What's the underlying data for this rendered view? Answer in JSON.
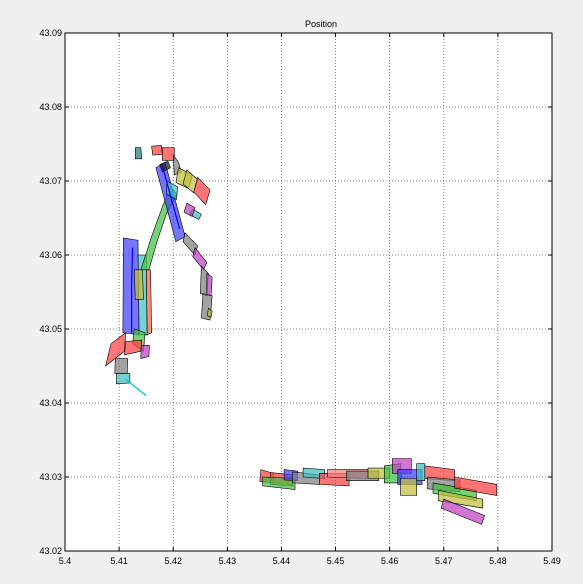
{
  "chart_data": {
    "type": "area",
    "title": "Position",
    "xlabel": "",
    "ylabel": "",
    "xlim": [
      5.4,
      5.49
    ],
    "ylim": [
      43.02,
      43.09
    ],
    "x_ticks": [
      5.4,
      5.41,
      5.42,
      5.43,
      5.44,
      5.45,
      5.46,
      5.47,
      5.48,
      5.49
    ],
    "x_tick_labels": [
      "5.4",
      "5.41",
      "5.42",
      "5.43",
      "5.44",
      "5.45",
      "5.46",
      "5.47",
      "5.48",
      "5.49"
    ],
    "y_ticks": [
      43.02,
      43.03,
      43.04,
      43.05,
      43.06,
      43.07,
      43.08,
      43.09
    ],
    "y_tick_labels": [
      "43.02",
      "43.03",
      "43.04",
      "43.05",
      "43.06",
      "43.07",
      "43.08",
      "43.09"
    ],
    "grid": true,
    "legend": "none",
    "patches": [
      {
        "color": "#4040ff",
        "points": [
          [
            5.4107,
            43.0495
          ],
          [
            5.4137,
            43.0492
          ],
          [
            5.4135,
            43.062
          ],
          [
            5.4108,
            43.0623
          ]
        ]
      },
      {
        "color": "#40c0c0",
        "points": [
          [
            5.4137,
            43.0492
          ],
          [
            5.4152,
            43.0492
          ],
          [
            5.415,
            43.06
          ],
          [
            5.4135,
            43.06
          ]
        ]
      },
      {
        "color": "#ff6040",
        "points": [
          [
            5.4152,
            43.0492
          ],
          [
            5.416,
            43.0495
          ],
          [
            5.4158,
            43.058
          ],
          [
            5.415,
            43.058
          ]
        ]
      },
      {
        "color": "#c0c040",
        "points": [
          [
            5.413,
            43.054
          ],
          [
            5.4145,
            43.054
          ],
          [
            5.4143,
            43.058
          ],
          [
            5.4128,
            43.058
          ]
        ]
      },
      {
        "color": "#40c040",
        "points": [
          [
            5.4125,
            43.048
          ],
          [
            5.4145,
            43.047
          ],
          [
            5.4148,
            43.0495
          ],
          [
            5.4128,
            43.05
          ]
        ]
      },
      {
        "color": "#ff4040",
        "points": [
          [
            5.4075,
            43.045
          ],
          [
            5.411,
            43.047
          ],
          [
            5.4112,
            43.0495
          ],
          [
            5.4085,
            43.048
          ]
        ]
      },
      {
        "color": "#ff4040",
        "points": [
          [
            5.411,
            43.0465
          ],
          [
            5.414,
            43.047
          ],
          [
            5.4142,
            43.0485
          ],
          [
            5.4112,
            43.0483
          ]
        ]
      },
      {
        "color": "#c040c0",
        "points": [
          [
            5.414,
            43.046
          ],
          [
            5.4155,
            43.0463
          ],
          [
            5.4156,
            43.0478
          ],
          [
            5.4141,
            43.0478
          ]
        ]
      },
      {
        "color": "#808080",
        "points": [
          [
            5.4092,
            43.044
          ],
          [
            5.4115,
            43.044
          ],
          [
            5.4116,
            43.046
          ],
          [
            5.4093,
            43.046
          ]
        ]
      },
      {
        "color": "#40c0c0",
        "points": [
          [
            5.4095,
            43.0426
          ],
          [
            5.412,
            43.0427
          ],
          [
            5.412,
            43.044
          ],
          [
            5.4095,
            43.044
          ]
        ]
      },
      {
        "color": "#40c040",
        "points": [
          [
            5.414,
            43.058
          ],
          [
            5.416,
            43.0625
          ],
          [
            5.418,
            43.0665
          ],
          [
            5.4195,
            43.0692
          ],
          [
            5.4207,
            43.0682
          ],
          [
            5.4187,
            43.0655
          ],
          [
            5.417,
            43.0618
          ],
          [
            5.4155,
            43.058
          ]
        ]
      },
      {
        "color": "#4040ff",
        "points": [
          [
            5.4168,
            43.0718
          ],
          [
            5.4185,
            43.0725
          ],
          [
            5.4222,
            43.0625
          ],
          [
            5.4205,
            43.0618
          ]
        ]
      },
      {
        "color": "#202020",
        "points": [
          [
            5.4175,
            43.0722
          ],
          [
            5.419,
            43.0727
          ],
          [
            5.4195,
            43.0718
          ],
          [
            5.418,
            43.0712
          ]
        ]
      },
      {
        "color": "#40c0c0",
        "points": [
          [
            5.4188,
            43.07
          ],
          [
            5.4208,
            43.0692
          ],
          [
            5.4206,
            43.0675
          ],
          [
            5.4188,
            43.0682
          ]
        ]
      },
      {
        "color": "#ff4040",
        "points": [
          [
            5.418,
            43.0745
          ],
          [
            5.4202,
            43.0745
          ],
          [
            5.4202,
            43.0728
          ],
          [
            5.418,
            43.0728
          ]
        ]
      },
      {
        "color": "#808080",
        "points": [
          [
            5.42,
            43.0735
          ],
          [
            5.421,
            43.0725
          ],
          [
            5.4215,
            43.0712
          ],
          [
            5.4202,
            43.0708
          ]
        ]
      },
      {
        "color": "#c0c040",
        "points": [
          [
            5.421,
            43.0718
          ],
          [
            5.4235,
            43.0708
          ],
          [
            5.4228,
            43.069
          ],
          [
            5.4205,
            43.0698
          ]
        ]
      },
      {
        "color": "#c0c040",
        "points": [
          [
            5.4225,
            43.0715
          ],
          [
            5.4245,
            43.0702
          ],
          [
            5.4238,
            43.0684
          ],
          [
            5.4218,
            43.0696
          ]
        ]
      },
      {
        "color": "#ff4040",
        "points": [
          [
            5.4245,
            43.0705
          ],
          [
            5.4268,
            43.0688
          ],
          [
            5.426,
            43.0668
          ],
          [
            5.4238,
            43.0685
          ]
        ]
      },
      {
        "color": "#40c0c0",
        "points": [
          [
            5.4236,
            43.0662
          ],
          [
            5.4252,
            43.0655
          ],
          [
            5.4247,
            43.0648
          ],
          [
            5.423,
            43.0655
          ]
        ]
      },
      {
        "color": "#c040c0",
        "points": [
          [
            5.4225,
            43.067
          ],
          [
            5.424,
            43.0664
          ],
          [
            5.4235,
            43.0652
          ],
          [
            5.422,
            43.0658
          ]
        ]
      },
      {
        "color": "#808080",
        "points": [
          [
            5.4222,
            43.063
          ],
          [
            5.4245,
            43.0612
          ],
          [
            5.424,
            43.06
          ],
          [
            5.4218,
            43.0618
          ]
        ]
      },
      {
        "color": "#c040c0",
        "points": [
          [
            5.424,
            43.061
          ],
          [
            5.4262,
            43.059
          ],
          [
            5.4256,
            43.058
          ],
          [
            5.4236,
            43.0598
          ]
        ]
      },
      {
        "color": "#808080",
        "points": [
          [
            5.4252,
            43.0585
          ],
          [
            5.4265,
            43.0575
          ],
          [
            5.4262,
            43.0545
          ],
          [
            5.425,
            43.0548
          ]
        ]
      },
      {
        "color": "#c040c0",
        "points": [
          [
            5.4262,
            43.0575
          ],
          [
            5.4272,
            43.057
          ],
          [
            5.427,
            43.0545
          ],
          [
            5.4262,
            43.0545
          ]
        ]
      },
      {
        "color": "#808080",
        "points": [
          [
            5.4255,
            43.0548
          ],
          [
            5.4272,
            43.0545
          ],
          [
            5.4268,
            43.0512
          ],
          [
            5.4252,
            43.0515
          ]
        ]
      },
      {
        "color": "#c0c040",
        "points": [
          [
            5.4265,
            43.0528
          ],
          [
            5.4272,
            43.0524
          ],
          [
            5.427,
            43.0516
          ],
          [
            5.4263,
            43.0518
          ]
        ]
      },
      {
        "color": "#ff4040",
        "points": [
          [
            5.416,
            43.0747
          ],
          [
            5.4178,
            43.0748
          ],
          [
            5.418,
            43.0736
          ],
          [
            5.4162,
            43.0735
          ]
        ]
      },
      {
        "color": "#208080",
        "points": [
          [
            5.413,
            43.0745
          ],
          [
            5.414,
            43.0745
          ],
          [
            5.4142,
            43.073
          ],
          [
            5.413,
            43.073
          ]
        ]
      },
      {
        "color": "#ff4040",
        "points": [
          [
            5.4362,
            43.031
          ],
          [
            5.4385,
            43.0305
          ],
          [
            5.4385,
            43.0292
          ],
          [
            5.436,
            43.0294
          ]
        ]
      },
      {
        "color": "#ff4040",
        "points": [
          [
            5.438,
            43.0306
          ],
          [
            5.442,
            43.0303
          ],
          [
            5.4421,
            43.0288
          ],
          [
            5.438,
            43.029
          ]
        ]
      },
      {
        "color": "#40c040",
        "points": [
          [
            5.4365,
            43.03
          ],
          [
            5.4425,
            43.0298
          ],
          [
            5.4425,
            43.0283
          ],
          [
            5.4365,
            43.0288
          ]
        ]
      },
      {
        "color": "#4040ff",
        "points": [
          [
            5.4405,
            43.031
          ],
          [
            5.443,
            43.0308
          ],
          [
            5.443,
            43.0295
          ],
          [
            5.4405,
            43.0296
          ]
        ]
      },
      {
        "color": "#808080",
        "points": [
          [
            5.442,
            43.0307
          ],
          [
            5.447,
            43.0303
          ],
          [
            5.447,
            43.029
          ],
          [
            5.442,
            43.0292
          ]
        ]
      },
      {
        "color": "#40c0c0",
        "points": [
          [
            5.444,
            43.0312
          ],
          [
            5.448,
            43.031
          ],
          [
            5.448,
            43.0298
          ],
          [
            5.444,
            43.03
          ]
        ]
      },
      {
        "color": "#ff4040",
        "points": [
          [
            5.447,
            43.0305
          ],
          [
            5.4525,
            43.0305
          ],
          [
            5.4525,
            43.0288
          ],
          [
            5.447,
            43.029
          ]
        ]
      },
      {
        "color": "#ff8080",
        "points": [
          [
            5.4485,
            43.031
          ],
          [
            5.456,
            43.031
          ],
          [
            5.456,
            43.0298
          ],
          [
            5.4485,
            43.03
          ]
        ]
      },
      {
        "color": "#808080",
        "points": [
          [
            5.452,
            43.0308
          ],
          [
            5.458,
            43.0308
          ],
          [
            5.458,
            43.0295
          ],
          [
            5.452,
            43.0295
          ]
        ]
      },
      {
        "color": "#c0c040",
        "points": [
          [
            5.456,
            43.0312
          ],
          [
            5.46,
            43.0312
          ],
          [
            5.46,
            43.0298
          ],
          [
            5.456,
            43.0298
          ]
        ]
      },
      {
        "color": "#40c040",
        "points": [
          [
            5.459,
            43.0315
          ],
          [
            5.462,
            43.0318
          ],
          [
            5.4622,
            43.0292
          ],
          [
            5.459,
            43.0292
          ]
        ]
      },
      {
        "color": "#c040c0",
        "points": [
          [
            5.4605,
            43.0325
          ],
          [
            5.464,
            43.0325
          ],
          [
            5.464,
            43.0305
          ],
          [
            5.4605,
            43.0305
          ]
        ]
      },
      {
        "color": "#4040ff",
        "points": [
          [
            5.4615,
            43.031
          ],
          [
            5.466,
            43.031
          ],
          [
            5.466,
            43.029
          ],
          [
            5.4615,
            43.029
          ]
        ]
      },
      {
        "color": "#c0c040",
        "points": [
          [
            5.462,
            43.0298
          ],
          [
            5.465,
            43.0298
          ],
          [
            5.465,
            43.0275
          ],
          [
            5.462,
            43.0275
          ]
        ]
      },
      {
        "color": "#40c0c0",
        "points": [
          [
            5.465,
            43.0318
          ],
          [
            5.4665,
            43.0318
          ],
          [
            5.4665,
            43.0295
          ],
          [
            5.465,
            43.0295
          ]
        ]
      },
      {
        "color": "#ff4040",
        "points": [
          [
            5.4665,
            43.0315
          ],
          [
            5.472,
            43.031
          ],
          [
            5.472,
            43.0295
          ],
          [
            5.4665,
            43.0298
          ]
        ]
      },
      {
        "color": "#808080",
        "points": [
          [
            5.467,
            43.03
          ],
          [
            5.473,
            43.0296
          ],
          [
            5.473,
            43.028
          ],
          [
            5.467,
            43.0284
          ]
        ]
      },
      {
        "color": "#40c040",
        "points": [
          [
            5.468,
            43.0292
          ],
          [
            5.476,
            43.0282
          ],
          [
            5.476,
            43.0268
          ],
          [
            5.468,
            43.0278
          ]
        ]
      },
      {
        "color": "#ff4040",
        "points": [
          [
            5.472,
            43.03
          ],
          [
            5.4798,
            43.029
          ],
          [
            5.4798,
            43.0275
          ],
          [
            5.472,
            43.0285
          ]
        ]
      },
      {
        "color": "#c0c040",
        "points": [
          [
            5.469,
            43.0282
          ],
          [
            5.4772,
            43.027
          ],
          [
            5.4772,
            43.0258
          ],
          [
            5.469,
            43.0268
          ]
        ]
      },
      {
        "color": "#c040c0",
        "points": [
          [
            5.47,
            43.027
          ],
          [
            5.4775,
            43.0248
          ],
          [
            5.477,
            43.0236
          ],
          [
            5.4695,
            43.0258
          ]
        ]
      }
    ],
    "lines": [
      {
        "color": "#00c0c0",
        "points": [
          [
            5.4112,
            43.0432
          ],
          [
            5.415,
            43.041
          ]
        ]
      },
      {
        "color": "#0000ff",
        "points": [
          [
            5.4123,
            43.0495
          ],
          [
            5.4123,
            43.056
          ],
          [
            5.4125,
            43.061
          ]
        ]
      },
      {
        "color": "#0000ff",
        "points": [
          [
            5.418,
            43.072
          ],
          [
            5.4212,
            43.0635
          ]
        ]
      }
    ]
  }
}
